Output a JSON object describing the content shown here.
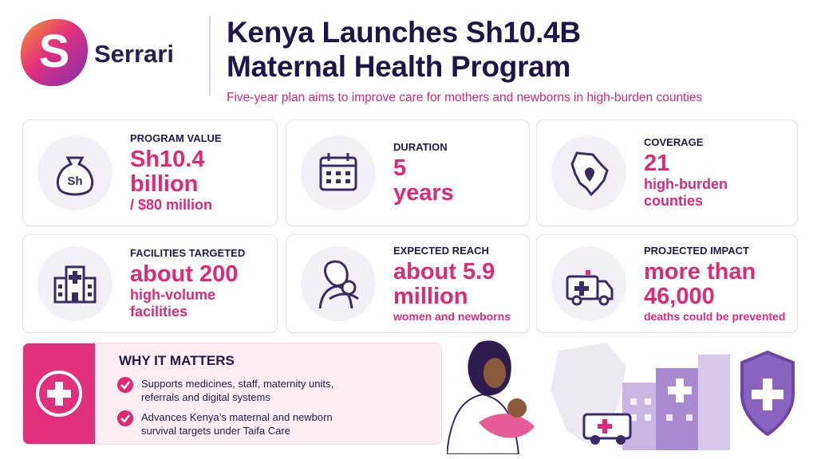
{
  "logo": {
    "name": "Serrari",
    "letter": "S"
  },
  "header": {
    "title_lines": [
      "Kenya Launches Sh10.4B",
      "Maternal Health Program"
    ],
    "subtitle": "Five-year plan aims to improve care for mothers and newborns in high-burden counties"
  },
  "cards": [
    {
      "label": "PROGRAM VALUE",
      "icon_text": "Sh",
      "value_lines": [
        "Sh10.4",
        "billion"
      ],
      "note_lines": [
        "/ $80 million"
      ]
    },
    {
      "label": "DURATION",
      "value_lines": [
        "5",
        "years"
      ],
      "note_lines": []
    },
    {
      "label": "COVERAGE",
      "value_lines": [
        "21"
      ],
      "note_lines": [
        "high-burden",
        "counties"
      ]
    },
    {
      "label": "FACILITIES TARGETED",
      "value_lines": [
        "about 200"
      ],
      "note_lines": [
        "high-volume",
        "facilities"
      ]
    },
    {
      "label": "EXPECTED REACH",
      "value_lines": [
        "about 5.9",
        "million"
      ],
      "note_lines": [
        "women and newborns"
      ]
    },
    {
      "label": "PROJECTED IMPACT",
      "value_lines": [
        "more than",
        "46,000"
      ],
      "note_lines": [
        "deaths could be prevented"
      ]
    }
  ],
  "why": {
    "title": "WHY IT MATTERS",
    "items": [
      [
        "Supports medicines, staff, maternity units,",
        "referrals and digital systems"
      ],
      [
        "Advances Kenya’s maternal and newborn",
        "survival targets under Taifa Care"
      ]
    ]
  }
}
